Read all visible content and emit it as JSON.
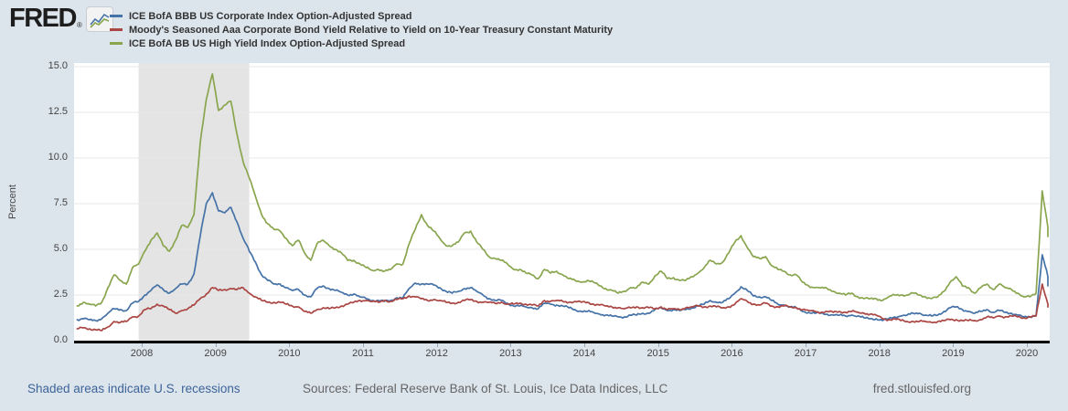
{
  "header": {
    "logo_text": "FRED",
    "logo_registered": "®"
  },
  "legend": [
    {
      "label": "ICE BofA BBB US Corporate Index Option-Adjusted Spread",
      "color": "#4572a7"
    },
    {
      "label": "Moody's Seasoned Aaa Corporate Bond Yield Relative to Yield on 10-Year Treasury Constant Maturity",
      "color": "#aa4643"
    },
    {
      "label": "ICE BofA BB US High Yield Index Option-Adjusted Spread",
      "color": "#89a54e"
    }
  ],
  "footer": {
    "recession_note": "Shaded areas indicate U.S. recessions",
    "sources": "Sources: Federal Reserve Bank of St. Louis, Ice Data Indices, LLC",
    "site": "fred.stlouisfed.org"
  },
  "colors": {
    "page_background": "#dce4ec",
    "plot_background": "#ffffff",
    "recession_shading": "#e4e4e4",
    "gridline": "#e7e7e7",
    "axis_line": "#000000",
    "series_bbb": "#4572a7",
    "series_aaa10y": "#aa4643",
    "series_bb": "#89a54e",
    "tick_text": "#444444",
    "link_blue": "#3d6499"
  },
  "chart_data": {
    "type": "line",
    "ylabel": "Percent",
    "ylim": [
      0,
      15.2
    ],
    "yticks": [
      0.0,
      2.5,
      5.0,
      7.5,
      10.0,
      12.5,
      15.0
    ],
    "xticks_years": [
      2008,
      2009,
      2010,
      2011,
      2012,
      2013,
      2014,
      2015,
      2016,
      2017,
      2018,
      2019,
      2020
    ],
    "grid": true,
    "legend_position": "top-left",
    "recession_bands": [
      [
        "2007-12",
        "2009-06"
      ]
    ],
    "frequency": "monthly",
    "start_date": "2007-02",
    "end_date": "2020-05",
    "series": [
      {
        "name": "ICE BofA BBB US Corporate Index Option-Adjusted Spread",
        "color": "#4572a7",
        "values": [
          1.15,
          1.2,
          1.15,
          1.1,
          1.2,
          1.5,
          1.75,
          1.7,
          1.65,
          2.05,
          2.15,
          2.5,
          2.75,
          3.05,
          2.8,
          2.6,
          2.85,
          3.1,
          3.1,
          3.65,
          5.7,
          7.5,
          8.1,
          7.1,
          7.0,
          7.3,
          6.5,
          5.6,
          4.9,
          4.3,
          3.6,
          3.3,
          3.1,
          3.1,
          2.9,
          2.75,
          2.8,
          2.5,
          2.4,
          2.85,
          3.0,
          2.85,
          2.75,
          2.65,
          2.5,
          2.55,
          2.4,
          2.3,
          2.2,
          2.2,
          2.15,
          2.2,
          2.35,
          2.35,
          2.85,
          3.15,
          3.1,
          3.1,
          3.05,
          2.9,
          2.7,
          2.6,
          2.7,
          2.85,
          2.9,
          2.7,
          2.5,
          2.3,
          2.2,
          2.2,
          2.05,
          1.9,
          1.9,
          1.85,
          1.8,
          1.75,
          2.05,
          2.0,
          1.95,
          1.9,
          1.8,
          1.7,
          1.6,
          1.6,
          1.55,
          1.45,
          1.4,
          1.35,
          1.3,
          1.3,
          1.4,
          1.4,
          1.5,
          1.5,
          1.7,
          1.8,
          1.65,
          1.7,
          1.65,
          1.7,
          1.8,
          1.9,
          2.0,
          2.2,
          2.1,
          2.1,
          2.3,
          2.6,
          2.95,
          2.75,
          2.45,
          2.4,
          2.4,
          2.2,
          2.0,
          1.95,
          1.85,
          1.8,
          1.6,
          1.55,
          1.5,
          1.5,
          1.45,
          1.4,
          1.4,
          1.35,
          1.4,
          1.35,
          1.25,
          1.2,
          1.2,
          1.1,
          1.2,
          1.3,
          1.35,
          1.4,
          1.5,
          1.5,
          1.4,
          1.35,
          1.4,
          1.6,
          1.8,
          1.85,
          1.7,
          1.6,
          1.5,
          1.6,
          1.7,
          1.55,
          1.65,
          1.55,
          1.5,
          1.4,
          1.3,
          1.3,
          1.4,
          4.7,
          3.5,
          3.0
        ]
      },
      {
        "name": "Moody's Seasoned Aaa Corporate Bond Yield Relative to Yield on 10-Year Treasury Constant Maturity",
        "color": "#aa4643",
        "values": [
          0.65,
          0.7,
          0.65,
          0.6,
          0.55,
          0.75,
          1.05,
          1.0,
          1.05,
          1.3,
          1.35,
          1.7,
          1.75,
          2.0,
          1.9,
          1.7,
          1.5,
          1.65,
          1.75,
          1.95,
          2.3,
          2.55,
          2.9,
          2.75,
          2.8,
          2.85,
          2.8,
          2.9,
          2.6,
          2.4,
          2.2,
          2.1,
          2.1,
          2.1,
          2.0,
          1.9,
          1.85,
          1.6,
          1.5,
          1.7,
          1.8,
          1.75,
          1.8,
          1.9,
          2.0,
          2.1,
          2.2,
          2.2,
          2.15,
          2.1,
          2.2,
          2.15,
          2.25,
          2.3,
          2.45,
          2.4,
          2.3,
          2.2,
          2.25,
          2.2,
          2.1,
          2.05,
          2.1,
          2.2,
          2.25,
          2.15,
          2.1,
          2.1,
          2.05,
          2.1,
          2.0,
          2.0,
          2.05,
          2.0,
          1.95,
          1.9,
          2.2,
          2.15,
          2.2,
          2.15,
          2.1,
          2.15,
          2.1,
          2.1,
          2.0,
          1.95,
          1.9,
          1.85,
          1.8,
          1.75,
          1.8,
          1.85,
          1.8,
          1.8,
          1.75,
          1.85,
          1.7,
          1.75,
          1.7,
          1.8,
          1.85,
          1.9,
          1.85,
          1.9,
          1.85,
          1.8,
          1.85,
          2.0,
          2.3,
          2.15,
          2.0,
          1.95,
          2.05,
          1.9,
          1.85,
          1.9,
          1.85,
          1.8,
          1.7,
          1.65,
          1.6,
          1.55,
          1.6,
          1.55,
          1.6,
          1.55,
          1.6,
          1.55,
          1.5,
          1.45,
          1.4,
          1.2,
          1.15,
          1.2,
          1.1,
          1.05,
          1.05,
          1.05,
          1.05,
          1.0,
          1.05,
          1.1,
          1.15,
          1.15,
          1.1,
          1.1,
          1.1,
          1.15,
          1.3,
          1.25,
          1.35,
          1.3,
          1.35,
          1.3,
          1.25,
          1.3,
          1.35,
          3.1,
          2.0,
          1.85
        ]
      },
      {
        "name": "ICE BofA BB US High Yield Index Option-Adjusted Spread",
        "color": "#89a54e",
        "values": [
          1.9,
          2.1,
          2.0,
          1.9,
          2.1,
          2.9,
          3.6,
          3.3,
          3.1,
          4.0,
          4.2,
          4.9,
          5.5,
          5.9,
          5.2,
          4.9,
          5.5,
          6.3,
          6.2,
          6.9,
          10.8,
          13.2,
          14.6,
          12.6,
          12.9,
          13.1,
          11.3,
          9.8,
          8.9,
          7.9,
          6.9,
          6.4,
          6.1,
          6.0,
          5.6,
          5.2,
          5.5,
          4.8,
          4.4,
          5.3,
          5.5,
          5.2,
          5.0,
          4.8,
          4.4,
          4.4,
          4.2,
          4.0,
          3.85,
          3.9,
          3.8,
          3.9,
          4.2,
          4.2,
          5.3,
          6.1,
          6.9,
          6.3,
          6.0,
          5.6,
          5.2,
          5.2,
          5.4,
          5.9,
          6.0,
          5.4,
          5.0,
          4.6,
          4.5,
          4.4,
          4.2,
          3.9,
          3.9,
          3.7,
          3.6,
          3.4,
          3.9,
          3.7,
          3.8,
          3.6,
          3.4,
          3.3,
          3.2,
          3.3,
          3.2,
          3.0,
          2.85,
          2.75,
          2.6,
          2.7,
          2.9,
          2.9,
          3.2,
          3.1,
          3.55,
          3.8,
          3.4,
          3.45,
          3.3,
          3.3,
          3.5,
          3.7,
          4.0,
          4.4,
          4.2,
          4.3,
          4.8,
          5.4,
          5.75,
          5.1,
          4.6,
          4.5,
          4.6,
          4.1,
          3.9,
          3.8,
          3.6,
          3.6,
          3.2,
          3.0,
          2.9,
          2.9,
          2.85,
          2.7,
          2.6,
          2.5,
          2.6,
          2.4,
          2.3,
          2.3,
          2.3,
          2.2,
          2.4,
          2.5,
          2.5,
          2.5,
          2.6,
          2.5,
          2.4,
          2.3,
          2.4,
          2.7,
          3.2,
          3.5,
          3.0,
          2.9,
          2.6,
          2.9,
          3.1,
          2.8,
          3.1,
          2.9,
          2.8,
          2.6,
          2.4,
          2.4,
          2.6,
          8.2,
          6.2,
          5.7
        ]
      }
    ]
  }
}
